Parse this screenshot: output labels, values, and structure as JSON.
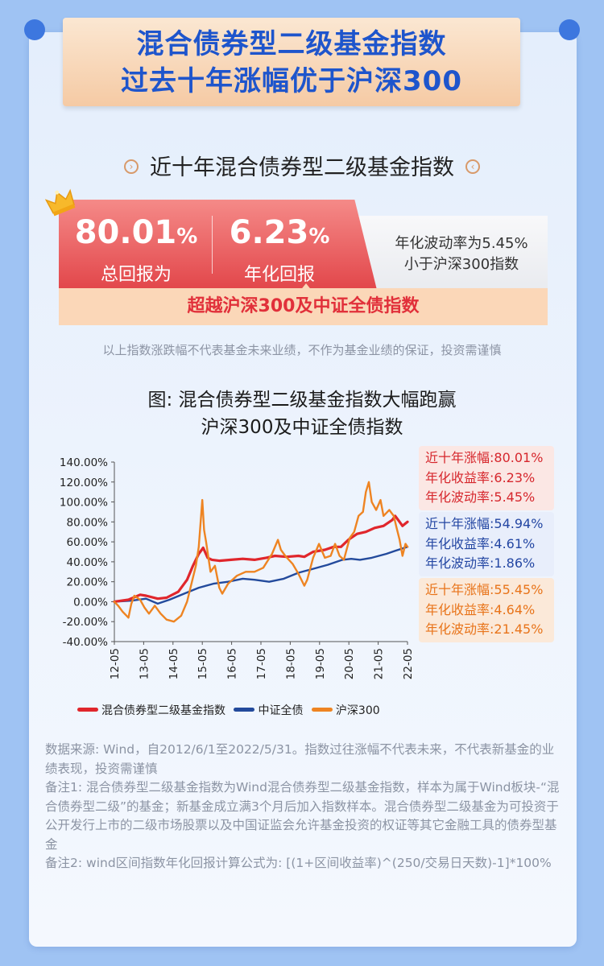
{
  "banner": {
    "line1": "混合债券型二级基金指数",
    "line2": "过去十年涨幅优于沪深300"
  },
  "subhead": "近十年混合债券型二级基金指数",
  "stats": {
    "total_return": "80.01",
    "total_return_unit": "%",
    "total_return_label": "总回报为",
    "annual_return": "6.23",
    "annual_return_unit": "%",
    "annual_return_label": "年化回报",
    "volatility_line1": "年化波动率为5.45%",
    "volatility_line2": "小于沪深300指数",
    "exceed_text": "超越沪深300及中证全债指数"
  },
  "disclaimer": "以上指数涨跌幅不代表基金未来业绩，不作为基金业绩的保证，投资需谨慎",
  "chart_data": {
    "type": "line",
    "title_line1": "图: 混合债券型二级基金指数大幅跑赢",
    "title_line2": "沪深300及中证全债指数",
    "x_ticks": [
      "12-05",
      "13-05",
      "14-05",
      "15-05",
      "16-05",
      "17-05",
      "18-05",
      "19-05",
      "20-05",
      "21-05",
      "22-05"
    ],
    "y_ticks": [
      "140.00%",
      "120.00%",
      "100.00%",
      "80.00%",
      "60.00%",
      "40.00%",
      "20.00%",
      "0.00%",
      "-20.00%",
      "-40.00%"
    ],
    "xlim": [
      2012.42,
      2022.42
    ],
    "ylim": [
      -40,
      140
    ],
    "legend_position": "bottom",
    "series": [
      {
        "name": "混合债券型二级基金指数",
        "color": "#e0262c",
        "points": [
          [
            2012.42,
            0
          ],
          [
            2012.9,
            2
          ],
          [
            2013.3,
            7
          ],
          [
            2013.5,
            6
          ],
          [
            2013.9,
            3
          ],
          [
            2014.2,
            4
          ],
          [
            2014.6,
            10
          ],
          [
            2014.9,
            22
          ],
          [
            2015.1,
            36
          ],
          [
            2015.3,
            48
          ],
          [
            2015.45,
            54
          ],
          [
            2015.6,
            44
          ],
          [
            2015.75,
            42
          ],
          [
            2016.0,
            41
          ],
          [
            2016.4,
            42
          ],
          [
            2016.8,
            43
          ],
          [
            2017.2,
            42
          ],
          [
            2017.6,
            44
          ],
          [
            2017.9,
            46
          ],
          [
            2018.3,
            45
          ],
          [
            2018.7,
            46
          ],
          [
            2018.9,
            45
          ],
          [
            2019.2,
            50
          ],
          [
            2019.6,
            52
          ],
          [
            2019.9,
            55
          ],
          [
            2020.15,
            55
          ],
          [
            2020.4,
            62
          ],
          [
            2020.7,
            68
          ],
          [
            2021.0,
            70
          ],
          [
            2021.3,
            74
          ],
          [
            2021.6,
            76
          ],
          [
            2021.9,
            82
          ],
          [
            2022.0,
            86
          ],
          [
            2022.15,
            80
          ],
          [
            2022.25,
            76
          ],
          [
            2022.42,
            80
          ]
        ]
      },
      {
        "name": "中证全债",
        "color": "#234a9c",
        "points": [
          [
            2012.42,
            0
          ],
          [
            2013.0,
            1
          ],
          [
            2013.5,
            3
          ],
          [
            2013.9,
            -2
          ],
          [
            2014.3,
            2
          ],
          [
            2014.8,
            8
          ],
          [
            2015.3,
            14
          ],
          [
            2015.8,
            18
          ],
          [
            2016.3,
            20
          ],
          [
            2016.8,
            23
          ],
          [
            2017.2,
            22
          ],
          [
            2017.7,
            20
          ],
          [
            2018.2,
            23
          ],
          [
            2018.7,
            29
          ],
          [
            2019.2,
            33
          ],
          [
            2019.7,
            37
          ],
          [
            2020.2,
            42
          ],
          [
            2020.5,
            43
          ],
          [
            2020.8,
            42
          ],
          [
            2021.2,
            44
          ],
          [
            2021.7,
            48
          ],
          [
            2022.0,
            51
          ],
          [
            2022.42,
            55
          ]
        ]
      },
      {
        "name": "沪深300",
        "color": "#ee8422",
        "points": [
          [
            2012.42,
            0
          ],
          [
            2012.55,
            -4
          ],
          [
            2012.7,
            -10
          ],
          [
            2012.9,
            -16
          ],
          [
            2013.0,
            -2
          ],
          [
            2013.1,
            6
          ],
          [
            2013.3,
            2
          ],
          [
            2013.45,
            -6
          ],
          [
            2013.6,
            -12
          ],
          [
            2013.8,
            -4
          ],
          [
            2014.0,
            -12
          ],
          [
            2014.2,
            -18
          ],
          [
            2014.45,
            -20
          ],
          [
            2014.7,
            -14
          ],
          [
            2014.9,
            0
          ],
          [
            2015.0,
            12
          ],
          [
            2015.2,
            36
          ],
          [
            2015.3,
            55
          ],
          [
            2015.42,
            102
          ],
          [
            2015.48,
            72
          ],
          [
            2015.55,
            60
          ],
          [
            2015.7,
            30
          ],
          [
            2015.85,
            36
          ],
          [
            2016.0,
            14
          ],
          [
            2016.1,
            8
          ],
          [
            2016.3,
            18
          ],
          [
            2016.6,
            26
          ],
          [
            2016.9,
            30
          ],
          [
            2017.2,
            30
          ],
          [
            2017.5,
            34
          ],
          [
            2017.8,
            48
          ],
          [
            2018.0,
            62
          ],
          [
            2018.1,
            52
          ],
          [
            2018.25,
            46
          ],
          [
            2018.5,
            38
          ],
          [
            2018.7,
            28
          ],
          [
            2018.9,
            16
          ],
          [
            2019.0,
            22
          ],
          [
            2019.2,
            44
          ],
          [
            2019.4,
            58
          ],
          [
            2019.6,
            44
          ],
          [
            2019.8,
            46
          ],
          [
            2019.95,
            58
          ],
          [
            2020.1,
            46
          ],
          [
            2020.25,
            42
          ],
          [
            2020.45,
            64
          ],
          [
            2020.6,
            70
          ],
          [
            2020.75,
            86
          ],
          [
            2020.9,
            90
          ],
          [
            2021.0,
            110
          ],
          [
            2021.1,
            120
          ],
          [
            2021.2,
            100
          ],
          [
            2021.35,
            92
          ],
          [
            2021.5,
            102
          ],
          [
            2021.6,
            86
          ],
          [
            2021.8,
            92
          ],
          [
            2021.95,
            86
          ],
          [
            2022.05,
            74
          ],
          [
            2022.15,
            62
          ],
          [
            2022.25,
            46
          ],
          [
            2022.35,
            58
          ],
          [
            2022.42,
            55
          ]
        ]
      }
    ],
    "annotations": [
      {
        "total": "近十年涨幅:80.01%",
        "annual": "年化收益率:6.23%",
        "volatility": "年化波动率:5.45%"
      },
      {
        "total": "近十年涨幅:54.94%",
        "annual": "年化收益率:4.61%",
        "volatility": "年化波动率:1.86%"
      },
      {
        "total": "近十年涨幅:55.45%",
        "annual": "年化收益率:4.64%",
        "volatility": "年化波动率:21.45%"
      }
    ]
  },
  "notes": {
    "source": "数据来源: Wind，自2012/6/1至2022/5/31。指数过往涨幅不代表未来，不代表新基金的业绩表现，投资需谨慎",
    "note1": "备注1: 混合债券型二级基金指数为Wind混合债券型二级基金指数，样本为属于Wind板块-“混合债券型二级”的基金；新基金成立满3个月后加入指数样本。混合债券型二级基金为可投资于公开发行上市的二级市场股票以及中国证监会允许基金投资的权证等其它金融工具的债券型基金",
    "note2": "备注2: wind区间指数年化回报计算公式为: [(1+区间收益率)^(250/交易日天数)-1]*100%"
  }
}
